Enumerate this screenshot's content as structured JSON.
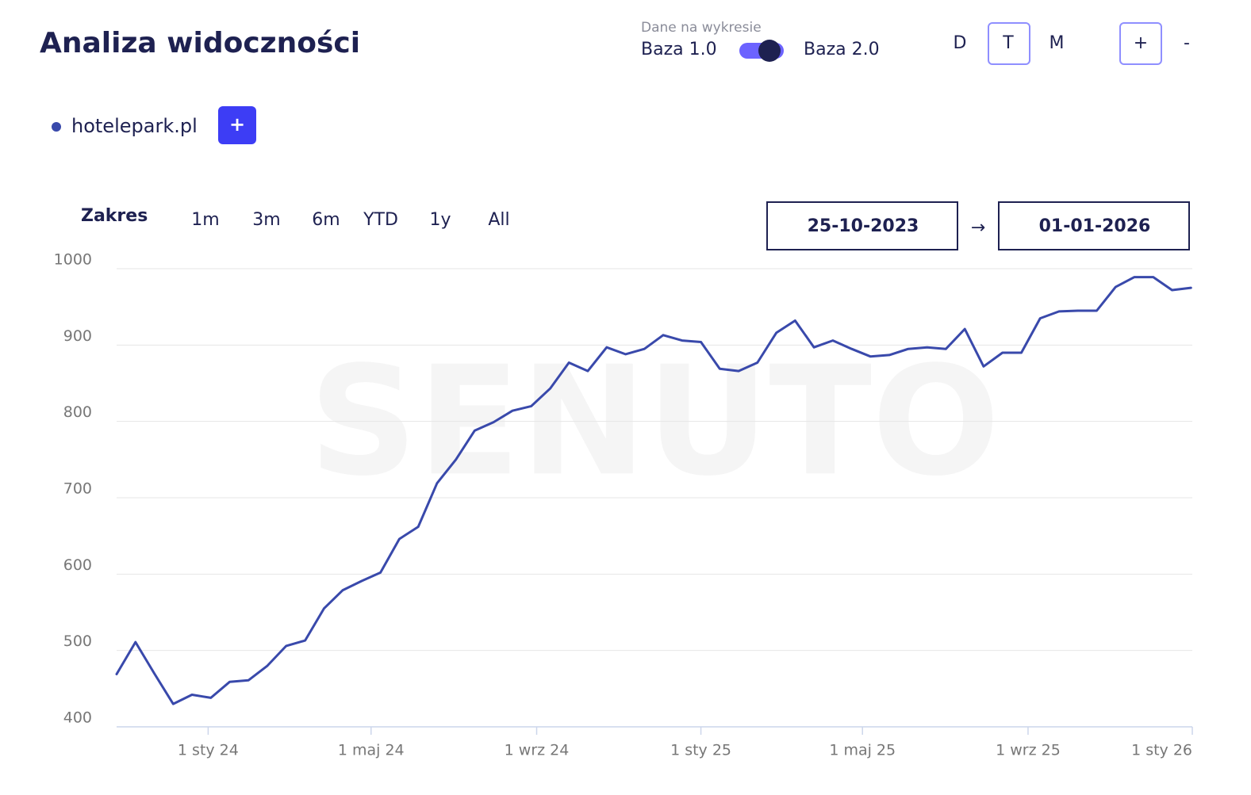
{
  "header": {
    "title": "Analiza widoczności",
    "data_toggle": {
      "label": "Dane na wykresie",
      "left": "Baza 1.0",
      "right": "Baza 2.0"
    },
    "granularity": [
      "D",
      "T",
      "M"
    ],
    "zoom": [
      "+",
      "-"
    ]
  },
  "legend_add": "+",
  "range": {
    "label": "Zakres",
    "options": [
      "1m",
      "3m",
      "6m",
      "YTD",
      "1y",
      "All"
    ],
    "from": "25-10-2023",
    "arrow": "→",
    "to": "01-01-2026"
  },
  "chart_data": {
    "type": "line",
    "watermark": "SENUTO",
    "x": [
      "2023-10-25",
      "2023-11-08",
      "2023-11-22",
      "2023-12-06",
      "2023-12-20",
      "2024-01-03",
      "2024-01-17",
      "2024-01-31",
      "2024-02-14",
      "2024-02-28",
      "2024-03-13",
      "2024-03-27",
      "2024-04-10",
      "2024-04-24",
      "2024-05-08",
      "2024-05-22",
      "2024-06-05",
      "2024-06-19",
      "2024-07-03",
      "2024-07-17",
      "2024-07-31",
      "2024-08-14",
      "2024-08-28",
      "2024-09-11",
      "2024-09-25",
      "2024-10-09",
      "2024-10-23",
      "2024-11-06",
      "2024-11-20",
      "2024-12-04",
      "2024-12-18",
      "2025-01-01",
      "2025-01-15",
      "2025-01-29",
      "2025-02-12",
      "2025-02-26",
      "2025-03-12",
      "2025-03-26",
      "2025-04-09",
      "2025-04-23",
      "2025-05-07",
      "2025-05-21",
      "2025-06-04",
      "2025-06-18",
      "2025-07-02",
      "2025-07-16",
      "2025-07-30",
      "2025-08-13",
      "2025-08-27",
      "2025-09-10",
      "2025-09-24",
      "2025-10-08",
      "2025-10-22",
      "2025-11-05",
      "2025-11-19",
      "2025-12-03",
      "2025-12-17",
      "2025-12-31"
    ],
    "series": [
      {
        "name": "hotelepark.pl",
        "color": "#3949ab",
        "values": [
          469,
          511,
          470,
          430,
          442,
          438,
          459,
          461,
          480,
          506,
          513,
          555,
          579,
          591,
          602,
          646,
          662,
          719,
          750,
          788,
          799,
          814,
          820,
          843,
          877,
          866,
          897,
          888,
          895,
          913,
          906,
          904,
          869,
          866,
          877,
          916,
          932,
          897,
          906,
          895,
          885,
          887,
          895,
          897,
          895,
          921,
          872,
          890,
          890,
          935,
          944,
          945,
          945,
          976,
          989,
          989,
          972,
          975
        ]
      }
    ],
    "xlim": [
      "2023-10-25",
      "2026-01-01"
    ],
    "xticks": [
      {
        "value": "2024-01-01",
        "label": "1 sty 24"
      },
      {
        "value": "2024-05-01",
        "label": "1 maj 24"
      },
      {
        "value": "2024-09-01",
        "label": "1 wrz 24"
      },
      {
        "value": "2025-01-01",
        "label": "1 sty 25"
      },
      {
        "value": "2025-05-01",
        "label": "1 maj 25"
      },
      {
        "value": "2025-09-01",
        "label": "1 wrz 25"
      },
      {
        "value": "2026-01-01",
        "label": "1 sty 26"
      }
    ],
    "ylim": [
      400,
      1000
    ],
    "yticks": [
      400,
      500,
      600,
      700,
      800,
      900,
      1000
    ],
    "grid": true
  }
}
